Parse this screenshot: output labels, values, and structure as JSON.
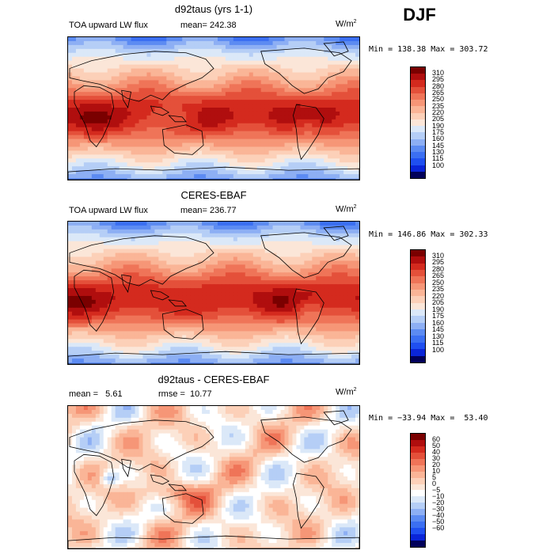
{
  "page": {
    "title": "DJF"
  },
  "colors": {
    "land_outline": "#000000",
    "abs_scale": [
      "#01005a",
      "#0a25d8",
      "#1f4ff0",
      "#3b6ff2",
      "#5c8bf2",
      "#8daff4",
      "#b5cef6",
      "#dbe8f8",
      "#fbe6d8",
      "#fcd0b8",
      "#fab597",
      "#f69677",
      "#ef7458",
      "#e4503a",
      "#d42a1e",
      "#b00e0e",
      "#7a0000"
    ],
    "diff_scale": [
      "#01005a",
      "#0a25d8",
      "#1f4ff0",
      "#3b6ff2",
      "#5c8bf2",
      "#8daff4",
      "#b5cef6",
      "#dbe8f8",
      "#ffffff",
      "#fbe6d8",
      "#fcd0b8",
      "#fab597",
      "#f69677",
      "#ef7458",
      "#e4503a",
      "#d42a1e",
      "#b00e0e",
      "#7a0000"
    ]
  },
  "panels": [
    {
      "id": "model",
      "title": "d92taus (yrs 1-1)",
      "left_label": "TOA upward LW flux",
      "mid_label": "mean= 242.38",
      "units": "W/m",
      "units_exp": "2",
      "minmax": "Min = 138.38 Max = 303.72",
      "cb_labels": [
        "310",
        "295",
        "280",
        "265",
        "250",
        "235",
        "220",
        "205",
        "190",
        "175",
        "160",
        "145",
        "130",
        "115",
        "100"
      ]
    },
    {
      "id": "obs",
      "title": "CERES-EBAF",
      "left_label": "TOA upward LW flux",
      "mid_label": "mean= 236.77",
      "units": "W/m",
      "units_exp": "2",
      "minmax": "Min = 146.86 Max = 302.33",
      "cb_labels": [
        "310",
        "295",
        "280",
        "265",
        "250",
        "235",
        "220",
        "205",
        "190",
        "175",
        "160",
        "145",
        "130",
        "115",
        "100"
      ]
    },
    {
      "id": "diff",
      "title": "d92taus - CERES-EBAF",
      "left_label": "mean =   5.61",
      "mid_label": "rmse =  10.77",
      "units": "W/m",
      "units_exp": "2",
      "minmax": "Min = −33.94 Max =  53.40",
      "cb_labels": [
        "60",
        "50",
        "40",
        "30",
        "20",
        "10",
        "5",
        "0",
        "−5",
        "−10",
        "−20",
        "−30",
        "−40",
        "−50",
        "−60"
      ]
    }
  ]
}
